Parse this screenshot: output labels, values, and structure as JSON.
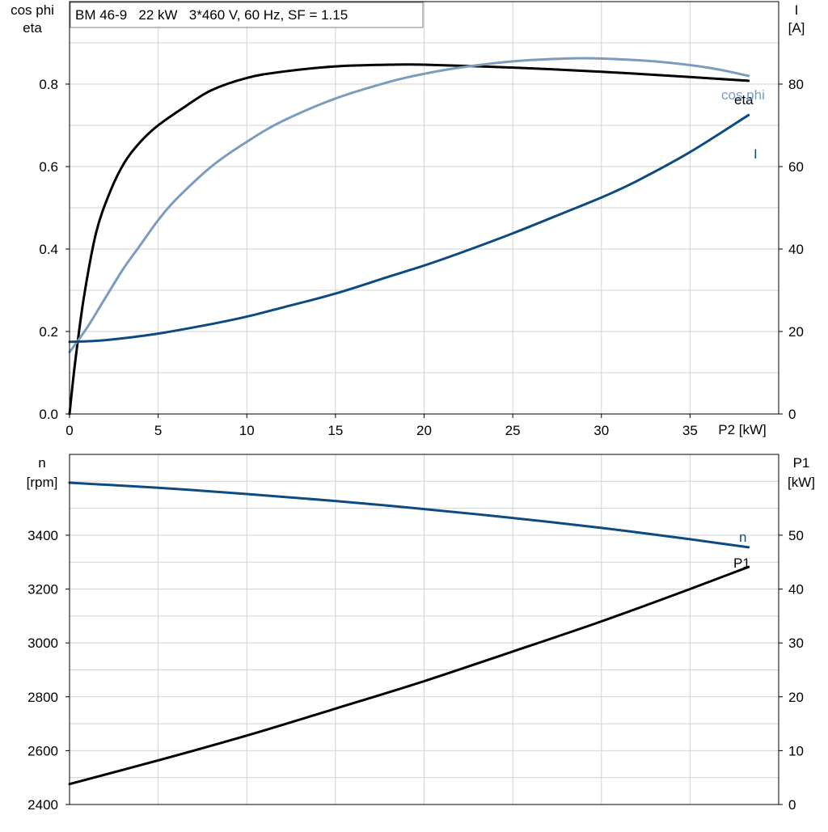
{
  "chart_data": [
    {
      "type": "line",
      "title": "BM 46-9   22 kW   3*460 V, 60 Hz, SF = 1.15",
      "xlabel": "P2 [kW]",
      "ylabel_left": [
        "cos phi",
        "eta"
      ],
      "ylabel_right": [
        "I",
        "[A]"
      ],
      "xlim": [
        0,
        40
      ],
      "ylim_left": [
        0,
        1.0
      ],
      "ylim_right": [
        0,
        100
      ],
      "x_ticks": [
        0,
        5,
        10,
        15,
        20,
        25,
        30,
        35
      ],
      "y_left_ticks": [
        "0.0",
        "0.2",
        "0.4",
        "0.6",
        "0.8"
      ],
      "y_right_ticks": [
        "0",
        "20",
        "40",
        "60",
        "80"
      ],
      "grid": true,
      "series": [
        {
          "name": "eta",
          "axis": "left",
          "color": "#000000",
          "x": [
            0,
            0.3,
            0.8,
            1.5,
            2.3,
            3.1,
            4,
            5,
            6.5,
            8,
            10,
            12,
            15,
            18,
            20,
            25,
            30,
            35,
            38.3
          ],
          "y": [
            0.0,
            0.12,
            0.28,
            0.44,
            0.54,
            0.61,
            0.66,
            0.7,
            0.745,
            0.785,
            0.815,
            0.83,
            0.843,
            0.847,
            0.847,
            0.84,
            0.83,
            0.817,
            0.808
          ]
        },
        {
          "name": "cos phi",
          "axis": "left",
          "color": "#7b9cbd",
          "x": [
            0,
            1,
            2,
            3,
            4,
            5,
            6,
            8,
            10,
            12,
            15,
            18,
            20,
            22,
            25,
            28,
            30,
            33,
            36,
            38.3
          ],
          "y": [
            0.15,
            0.21,
            0.28,
            0.35,
            0.41,
            0.47,
            0.52,
            0.6,
            0.66,
            0.71,
            0.765,
            0.805,
            0.825,
            0.84,
            0.855,
            0.862,
            0.862,
            0.855,
            0.84,
            0.82
          ]
        },
        {
          "name": "I",
          "axis": "right",
          "color": "#0d4a80",
          "x": [
            0,
            2,
            5,
            8,
            10,
            12,
            15,
            18,
            20,
            22,
            25,
            28,
            30,
            32,
            35,
            38.3
          ],
          "y": [
            17.5,
            17.9,
            19.5,
            21.8,
            23.6,
            25.8,
            29.2,
            33.3,
            36.0,
            39.0,
            43.8,
            49.0,
            52.5,
            56.5,
            63.5,
            72.5
          ]
        }
      ]
    },
    {
      "type": "line",
      "xlabel": "",
      "ylabel_left": [
        "n",
        "[rpm]"
      ],
      "ylabel_right": [
        "P1",
        "[kW]"
      ],
      "xlim": [
        0,
        40
      ],
      "ylim_left": [
        2400,
        3700
      ],
      "ylim_right": [
        0,
        65
      ],
      "y_left_ticks": [
        "2400",
        "2600",
        "2800",
        "3000",
        "3200",
        "3400"
      ],
      "y_right_ticks": [
        "0",
        "10",
        "20",
        "30",
        "40",
        "50"
      ],
      "grid": true,
      "series": [
        {
          "name": "n",
          "axis": "left",
          "color": "#0d4a80",
          "x": [
            0,
            5,
            10,
            15,
            20,
            25,
            30,
            35,
            38.3
          ],
          "y": [
            3595,
            3576,
            3553,
            3527,
            3497,
            3464,
            3427,
            3385,
            3355
          ]
        },
        {
          "name": "P1",
          "axis": "right",
          "color": "#000000",
          "x": [
            0,
            5,
            10,
            15,
            20,
            25,
            30,
            35,
            38.3
          ],
          "y": [
            3.8,
            8.2,
            12.8,
            17.8,
            22.9,
            28.4,
            34.0,
            40.0,
            44.1
          ]
        }
      ]
    }
  ]
}
